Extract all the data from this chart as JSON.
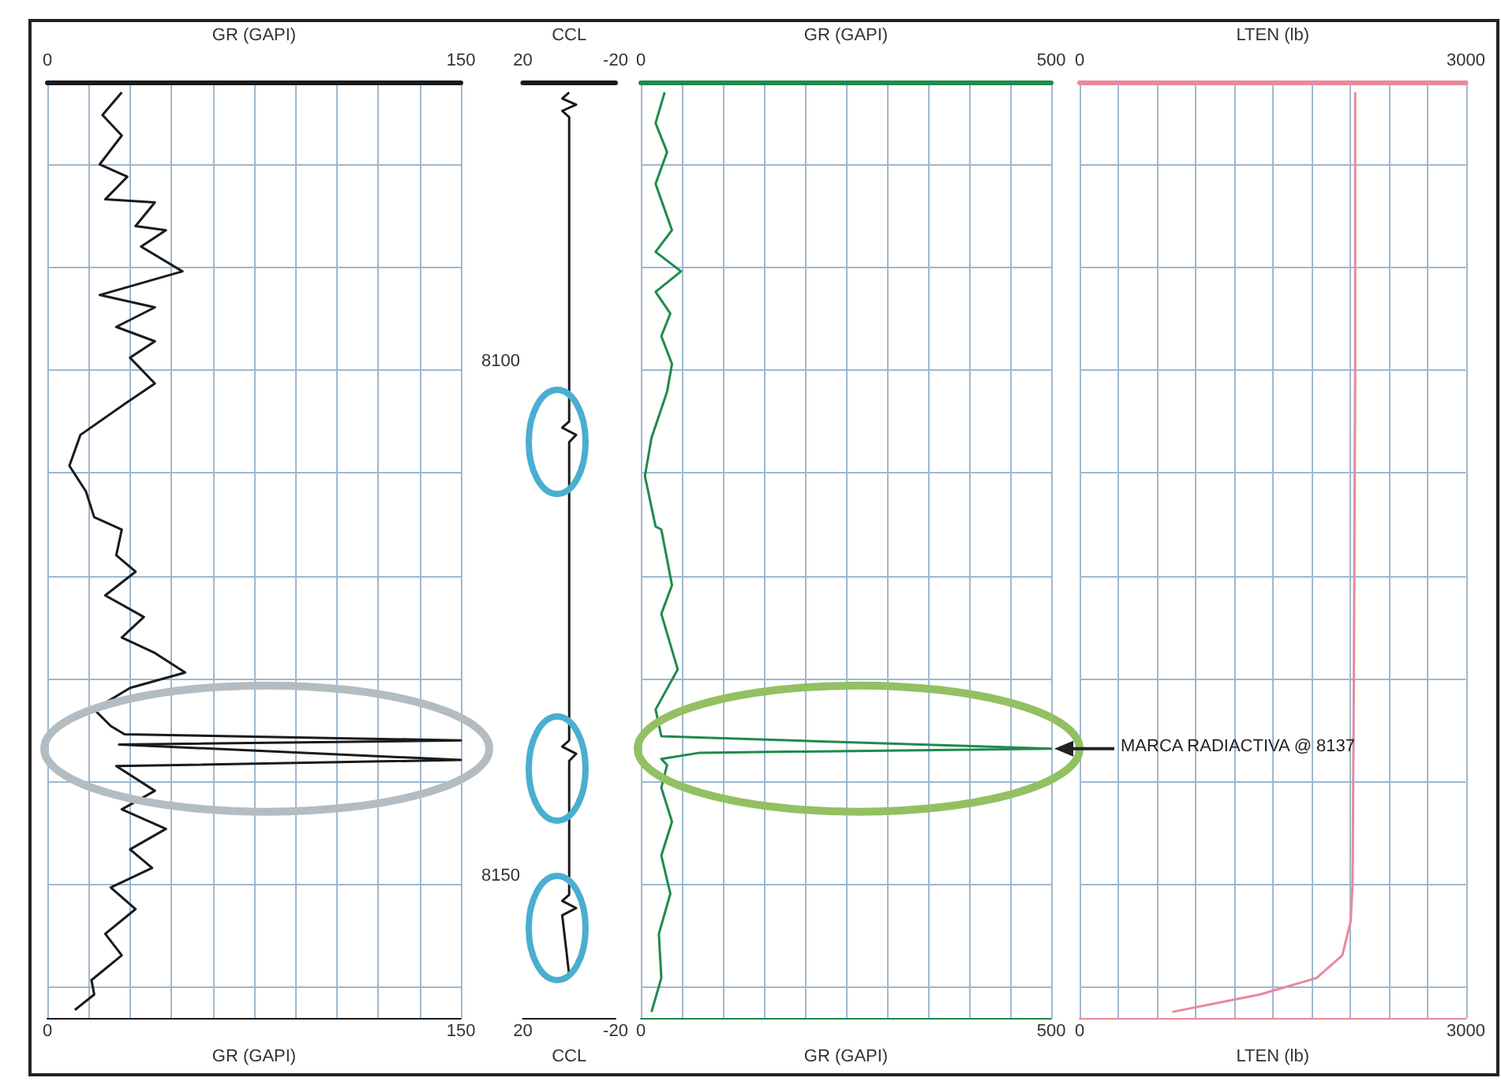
{
  "chart_data": [
    {
      "type": "line",
      "xlabel": "GR (GAPI)",
      "x2label": "GR (GAPI)",
      "xlim": [
        0,
        150
      ],
      "x2lim": [
        0,
        150
      ],
      "xticks": [
        0,
        {
          "value": 15,
          "label": null
        },
        {
          "value": 30,
          "label": null
        },
        {
          "value": 45,
          "label": null
        },
        {
          "value": 60,
          "label": null
        },
        {
          "value": 75,
          "label": null
        },
        {
          "value": 90,
          "label": null
        },
        {
          "value": 105,
          "label": null
        },
        {
          "value": 120,
          "label": null
        },
        {
          "value": 135,
          "label": null
        },
        150
      ],
      "x2ticks": [
        0,
        150
      ],
      "ylim": [
        8163,
        8072
      ],
      "yticks": [
        {
          "value": 8080,
          "label": null
        },
        {
          "value": 8090,
          "label": null
        },
        {
          "value": 8100,
          "label": null
        },
        {
          "value": 8110,
          "label": null
        },
        {
          "value": 8120,
          "label": null
        },
        {
          "value": 8130,
          "label": null
        },
        {
          "value": 8140,
          "label": null
        },
        {
          "value": 8150,
          "label": null
        },
        {
          "value": 8160,
          "label": null
        }
      ],
      "tick_labels": "x",
      "grid": true,
      "series": [
        {
          "color": "#1a1a1a",
          "x": [
            27,
            20,
            27,
            19,
            29,
            21,
            39,
            32,
            43,
            34,
            49,
            19,
            39,
            25,
            39,
            30,
            39,
            28,
            12,
            8,
            14,
            17,
            27,
            25,
            32,
            21,
            35,
            27,
            39,
            50,
            30,
            17,
            23,
            28,
            150,
            26,
            150,
            25,
            39,
            27,
            43,
            30,
            38,
            23,
            32,
            21,
            27,
            16,
            17,
            10
          ],
          "values": [
            8073,
            8075.2,
            8077.2,
            8080,
            8081.2,
            8083.4,
            8083.7,
            8086,
            8086.4,
            8088,
            8090.4,
            8092.7,
            8093.9,
            8095.8,
            8097.2,
            8098.8,
            8101.3,
            8103.3,
            8106.3,
            8109.3,
            8111.8,
            8114.3,
            8115.5,
            8118,
            8119.6,
            8121.9,
            8124,
            8126,
            8127.5,
            8129.4,
            8130.9,
            8133,
            8134.6,
            8135.4,
            8136,
            8136.4,
            8137.9,
            8138.5,
            8140.9,
            8142.7,
            8144.6,
            8146.6,
            8148.4,
            8150.3,
            8152.4,
            8154.8,
            8156.9,
            8159.3,
            8160.7,
            8162.2
          ]
        }
      ]
    },
    {
      "type": "line",
      "xlabel": "CCL",
      "x2label": "CCL",
      "xlim": [
        20,
        -20
      ],
      "x2lim": [
        20,
        -20
      ],
      "xticks": [
        20,
        -20
      ],
      "x2ticks": [
        20,
        -20
      ],
      "ylim": [
        8163,
        8072
      ],
      "yticks": [
        8100,
        8150
      ],
      "grid": false,
      "series": [
        {
          "color": "#1a1a1a",
          "x": [
            0,
            3,
            -3,
            3,
            0,
            0,
            3,
            -3,
            0,
            0,
            3,
            -3,
            0,
            0,
            3,
            -3,
            3,
            0
          ],
          "values": [
            8073,
            8073.6,
            8074.2,
            8074.8,
            8075.4,
            8105,
            8105.6,
            8106.3,
            8107,
            8136,
            8136.6,
            8137.3,
            8138,
            8151,
            8151.6,
            8152.3,
            8153,
            8158.8
          ]
        }
      ]
    },
    {
      "type": "line",
      "xlabel": "GR (GAPI)",
      "x2label": "GR (GAPI)",
      "xlim": [
        0,
        500
      ],
      "x2lim": [
        0,
        500
      ],
      "xticks": [
        0,
        {
          "value": 50,
          "label": null
        },
        {
          "value": 100,
          "label": null
        },
        {
          "value": 150,
          "label": null
        },
        {
          "value": 200,
          "label": null
        },
        {
          "value": 250,
          "label": null
        },
        {
          "value": 300,
          "label": null
        },
        {
          "value": 350,
          "label": null
        },
        {
          "value": 400,
          "label": null
        },
        {
          "value": 450,
          "label": null
        },
        500
      ],
      "x2ticks": [
        0,
        500
      ],
      "ylim": [
        8163,
        8072
      ],
      "yticks": [
        {
          "value": 8080,
          "label": null
        },
        {
          "value": 8090,
          "label": null
        },
        {
          "value": 8100,
          "label": null
        },
        {
          "value": 8110,
          "label": null
        },
        {
          "value": 8120,
          "label": null
        },
        {
          "value": 8130,
          "label": null
        },
        {
          "value": 8140,
          "label": null
        },
        {
          "value": 8150,
          "label": null
        },
        {
          "value": 8160,
          "label": null
        }
      ],
      "tick_labels": "x",
      "grid": true,
      "annotations": [
        "MARCA RADIACTIVA @ 8137"
      ],
      "series": [
        {
          "color": "#1f8a4c",
          "x": [
            29,
            18,
            32,
            18,
            38,
            18,
            49,
            18,
            36,
            25,
            38,
            32,
            13,
            5,
            18,
            25,
            38,
            25,
            45,
            18,
            25,
            500,
            72,
            25,
            32,
            25,
            38,
            25,
            36,
            22,
            25,
            13
          ],
          "values": [
            8073,
            8076,
            8078.8,
            8081.9,
            8086.4,
            8088.5,
            8090.4,
            8092.4,
            8094.5,
            8096.7,
            8099.4,
            8102.1,
            8106.6,
            8110.3,
            8115.2,
            8115.5,
            8120.9,
            8123.7,
            8129.1,
            8133,
            8135.6,
            8136.8,
            8137.2,
            8137.8,
            8138.4,
            8140.6,
            8143.9,
            8147.2,
            8150.9,
            8154.8,
            8159.1,
            8162.4
          ]
        }
      ]
    },
    {
      "type": "line",
      "xlabel": "LTEN (lb)",
      "x2label": "LTEN (lb)",
      "xlim": [
        0,
        3000
      ],
      "x2lim": [
        0,
        3000
      ],
      "xticks": [
        0,
        {
          "value": 300,
          "label": null
        },
        {
          "value": 600,
          "label": null
        },
        {
          "value": 900,
          "label": null
        },
        {
          "value": 1200,
          "label": null
        },
        {
          "value": 1500,
          "label": null
        },
        {
          "value": 1800,
          "label": null
        },
        {
          "value": 2100,
          "label": null
        },
        {
          "value": 2400,
          "label": null
        },
        {
          "value": 2700,
          "label": null
        },
        3000
      ],
      "x2ticks": [
        0,
        3000
      ],
      "ylim": [
        8163,
        8072
      ],
      "yticks": [
        {
          "value": 8080,
          "label": null
        },
        {
          "value": 8090,
          "label": null
        },
        {
          "value": 8100,
          "label": null
        },
        {
          "value": 8110,
          "label": null
        },
        {
          "value": 8120,
          "label": null
        },
        {
          "value": 8130,
          "label": null
        },
        {
          "value": 8140,
          "label": null
        },
        {
          "value": 8150,
          "label": null
        },
        {
          "value": 8160,
          "label": null
        }
      ],
      "tick_labels": "x",
      "grid": true,
      "series": [
        {
          "color": "#e8899a",
          "x": [
            2140,
            2140,
            2130,
            2120,
            2105,
            2040,
            1840,
            1400,
            720
          ],
          "values": [
            8073,
            8100,
            8130,
            8150,
            8153.6,
            8156.9,
            8159.1,
            8160.7,
            8162.4
          ]
        }
      ]
    }
  ]
}
